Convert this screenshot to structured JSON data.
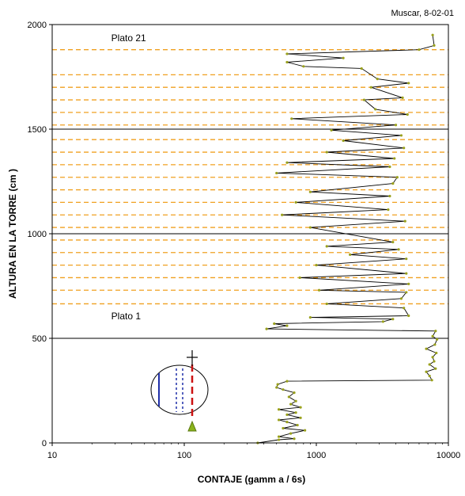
{
  "chart_data": {
    "type": "line",
    "title": "",
    "annotation_top_right": "Muscar, 8-02-01",
    "xlabel": "CONTAJE (gamm a / 6s)",
    "ylabel": "ALTURA EN LA TORRE (cm )",
    "x_scale": "log",
    "xlim": [
      10,
      10000
    ],
    "ylim": [
      0,
      2000
    ],
    "x_ticks": [
      10,
      100,
      1000,
      10000
    ],
    "x_tick_labels": [
      "10",
      "100",
      "1000",
      "10000"
    ],
    "y_ticks": [
      0,
      500,
      1000,
      1500,
      2000
    ],
    "y_tick_labels": [
      "0",
      "500",
      "1000",
      "1500",
      "2000"
    ],
    "grid": false,
    "legend": "none",
    "text_labels": [
      {
        "text": "Plato 21",
        "x": 28,
        "y": 1920
      },
      {
        "text": "Plato 1",
        "x": 28,
        "y": 590
      }
    ],
    "plate_lines_y": [
      1880,
      1760,
      1700,
      1640,
      1580,
      1520,
      1450,
      1390,
      1330,
      1270,
      1210,
      1150,
      1090,
      1030,
      970,
      910,
      850,
      790,
      730,
      665
    ],
    "solid_lines_y": [
      1500,
      1000,
      500
    ],
    "colors": {
      "series": "#000000",
      "markers": "#9aa11c",
      "plate_lines": "#f0a020",
      "frame": "#000000"
    },
    "series": [
      {
        "points": [
          [
            360,
            0
          ],
          [
            520,
            15
          ],
          [
            680,
            20
          ],
          [
            520,
            30
          ],
          [
            640,
            45
          ],
          [
            820,
            60
          ],
          [
            560,
            70
          ],
          [
            720,
            85
          ],
          [
            600,
            100
          ],
          [
            520,
            110
          ],
          [
            760,
            120
          ],
          [
            600,
            135
          ],
          [
            700,
            145
          ],
          [
            520,
            160
          ],
          [
            760,
            170
          ],
          [
            640,
            185
          ],
          [
            700,
            200
          ],
          [
            620,
            220
          ],
          [
            680,
            240
          ],
          [
            560,
            255
          ],
          [
            500,
            265
          ],
          [
            510,
            280
          ],
          [
            600,
            295
          ],
          [
            7500,
            300
          ],
          [
            7200,
            320
          ],
          [
            6800,
            340
          ],
          [
            8000,
            355
          ],
          [
            7200,
            375
          ],
          [
            7800,
            390
          ],
          [
            7600,
            410
          ],
          [
            8100,
            430
          ],
          [
            6800,
            450
          ],
          [
            7900,
            470
          ],
          [
            8200,
            495
          ],
          [
            7600,
            510
          ],
          [
            8000,
            535
          ],
          [
            420,
            545
          ],
          [
            600,
            560
          ],
          [
            480,
            570
          ],
          [
            3200,
            580
          ],
          [
            3800,
            592
          ],
          [
            900,
            600
          ],
          [
            5000,
            608
          ],
          [
            4600,
            645
          ],
          [
            1200,
            665
          ],
          [
            4400,
            690
          ],
          [
            4800,
            720
          ],
          [
            1050,
            730
          ],
          [
            5000,
            760
          ],
          [
            750,
            790
          ],
          [
            4800,
            810
          ],
          [
            1000,
            850
          ],
          [
            4800,
            880
          ],
          [
            1800,
            900
          ],
          [
            4200,
            925
          ],
          [
            1200,
            940
          ],
          [
            3800,
            960
          ],
          [
            900,
            1030
          ],
          [
            4700,
            1060
          ],
          [
            550,
            1090
          ],
          [
            3500,
            1115
          ],
          [
            700,
            1150
          ],
          [
            3600,
            1180
          ],
          [
            900,
            1200
          ],
          [
            3800,
            1240
          ],
          [
            4100,
            1270
          ],
          [
            500,
            1290
          ],
          [
            3600,
            1320
          ],
          [
            600,
            1340
          ],
          [
            3900,
            1360
          ],
          [
            1200,
            1390
          ],
          [
            4600,
            1410
          ],
          [
            1600,
            1445
          ],
          [
            4400,
            1470
          ],
          [
            1300,
            1495
          ],
          [
            4000,
            1520
          ],
          [
            650,
            1550
          ],
          [
            4900,
            1570
          ],
          [
            2800,
            1595
          ],
          [
            2300,
            1640
          ],
          [
            4500,
            1650
          ],
          [
            2600,
            1700
          ],
          [
            5000,
            1720
          ],
          [
            2900,
            1740
          ],
          [
            2200,
            1790
          ],
          [
            800,
            1800
          ],
          [
            600,
            1820
          ],
          [
            1600,
            1840
          ],
          [
            600,
            1860
          ],
          [
            6000,
            1880
          ],
          [
            7800,
            1900
          ],
          [
            7600,
            1950
          ]
        ]
      }
    ],
    "inset_labels": []
  }
}
